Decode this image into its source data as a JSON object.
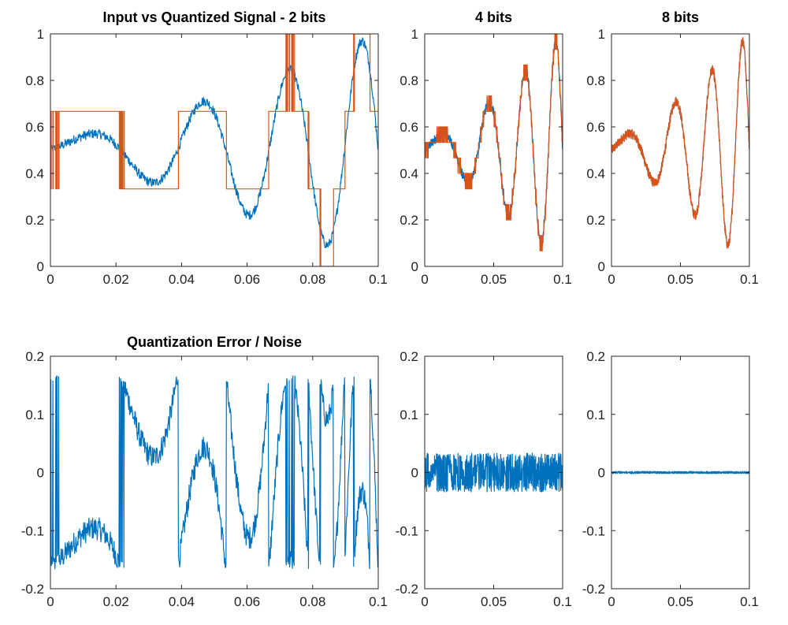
{
  "figure": {
    "colors": {
      "input": "#0072BD",
      "quantized": "#D95319",
      "axes": "#262626"
    }
  },
  "chart_data": [
    {
      "id": "q2",
      "type": "line",
      "title": "Input vs Quantized Signal - 2 bits",
      "xlim": [
        0,
        0.1
      ],
      "ylim": [
        0,
        1
      ],
      "xticks": [
        0,
        0.02,
        0.04,
        0.06,
        0.08,
        0.1
      ],
      "xtick_labels": [
        "0",
        "0.02",
        "0.04",
        "0.06",
        "0.08",
        "0.1"
      ],
      "yticks": [
        0,
        0.2,
        0.4,
        0.6,
        0.8,
        1
      ],
      "ytick_labels": [
        "0",
        "0.2",
        "0.4",
        "0.6",
        "0.8",
        "1"
      ],
      "signal": "input",
      "quantization_bits": 2,
      "series": [
        {
          "role": "input",
          "color": "#0072BD"
        },
        {
          "role": "quantized",
          "color": "#D95319",
          "levels": [
            0,
            0.3333,
            0.6667,
            1
          ]
        }
      ]
    },
    {
      "id": "q4",
      "type": "line",
      "title": "4 bits",
      "xlim": [
        0,
        0.1
      ],
      "ylim": [
        0,
        1
      ],
      "xticks": [
        0,
        0.05,
        0.1
      ],
      "xtick_labels": [
        "0",
        "0.05",
        "0.1"
      ],
      "yticks": [
        0,
        0.2,
        0.4,
        0.6,
        0.8,
        1
      ],
      "ytick_labels": [
        "0",
        "0.2",
        "0.4",
        "0.6",
        "0.8",
        "1"
      ],
      "signal": "input",
      "quantization_bits": 4,
      "series": [
        {
          "role": "input",
          "color": "#0072BD"
        },
        {
          "role": "quantized",
          "color": "#D95319"
        }
      ]
    },
    {
      "id": "q8",
      "type": "line",
      "title": "8 bits",
      "xlim": [
        0,
        0.1
      ],
      "ylim": [
        0,
        1
      ],
      "xticks": [
        0,
        0.05,
        0.1
      ],
      "xtick_labels": [
        "0",
        "0.05",
        "0.1"
      ],
      "yticks": [
        0,
        0.2,
        0.4,
        0.6,
        0.8,
        1
      ],
      "ytick_labels": [
        "0",
        "0.2",
        "0.4",
        "0.6",
        "0.8",
        "1"
      ],
      "signal": "input",
      "quantization_bits": 8,
      "series": [
        {
          "role": "input",
          "color": "#0072BD"
        },
        {
          "role": "quantized",
          "color": "#D95319"
        }
      ]
    },
    {
      "id": "e2",
      "type": "line",
      "title": "Quantization Error / Noise",
      "xlim": [
        0,
        0.1
      ],
      "ylim": [
        -0.2,
        0.2
      ],
      "xticks": [
        0,
        0.02,
        0.04,
        0.06,
        0.08,
        0.1
      ],
      "xtick_labels": [
        "0",
        "0.02",
        "0.04",
        "0.06",
        "0.08",
        "0.1"
      ],
      "yticks": [
        -0.2,
        -0.1,
        0,
        0.1,
        0.2
      ],
      "ytick_labels": [
        "-0.2",
        "-0.1",
        "0",
        "0.1",
        "0.2"
      ],
      "signal": "error",
      "quantization_bits": 2,
      "series": [
        {
          "role": "error",
          "color": "#0072BD"
        }
      ]
    },
    {
      "id": "e4",
      "type": "line",
      "title": "",
      "xlim": [
        0,
        0.1
      ],
      "ylim": [
        -0.2,
        0.2
      ],
      "xticks": [
        0,
        0.05,
        0.1
      ],
      "xtick_labels": [
        "0",
        "0.05",
        "0.1"
      ],
      "yticks": [
        -0.2,
        -0.1,
        0,
        0.1,
        0.2
      ],
      "ytick_labels": [
        "-0.2",
        "-0.1",
        "0",
        "0.1",
        "0.2"
      ],
      "signal": "error",
      "quantization_bits": 4,
      "series": [
        {
          "role": "error",
          "color": "#0072BD"
        }
      ]
    },
    {
      "id": "e8",
      "type": "line",
      "title": "",
      "xlim": [
        0,
        0.1
      ],
      "ylim": [
        -0.2,
        0.2
      ],
      "xticks": [
        0,
        0.05,
        0.1
      ],
      "xtick_labels": [
        "0",
        "0.05",
        "0.1"
      ],
      "yticks": [
        -0.2,
        -0.1,
        0,
        0.1,
        0.2
      ],
      "ytick_labels": [
        "-0.2",
        "-0.1",
        "0",
        "0.1",
        "0.2"
      ],
      "signal": "error",
      "quantization_bits": 8,
      "series": [
        {
          "role": "error",
          "color": "#0072BD"
        }
      ]
    }
  ]
}
